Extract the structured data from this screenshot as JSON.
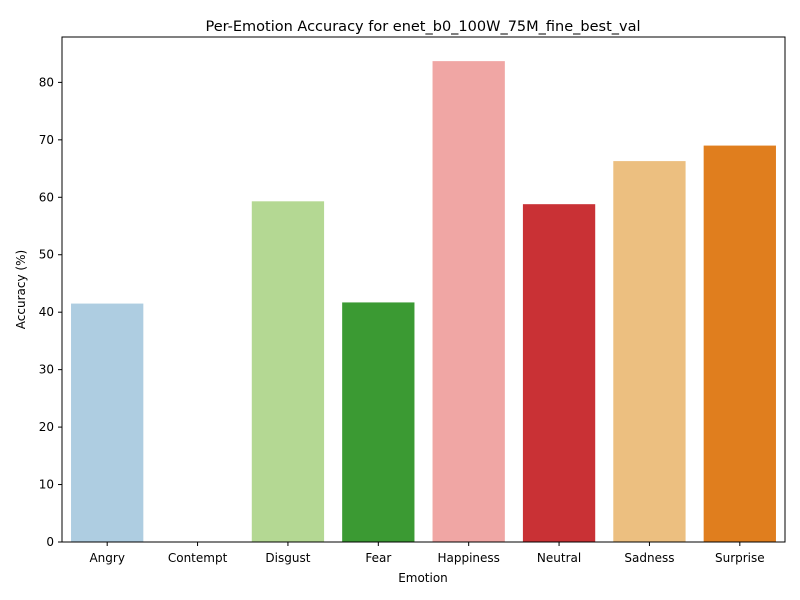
{
  "chart_data": {
    "type": "bar",
    "title": "Per-Emotion Accuracy for enet_b0_100W_75M_fine_best_val",
    "xlabel": "Emotion",
    "ylabel": "Accuracy (%)",
    "categories": [
      "Angry",
      "Contempt",
      "Disgust",
      "Fear",
      "Happiness",
      "Neutral",
      "Sadness",
      "Surprise"
    ],
    "values": [
      41.5,
      0,
      59.3,
      41.7,
      83.7,
      58.8,
      66.3,
      69.0
    ],
    "colors": [
      "#aecde1",
      "#1f78b4",
      "#b4d893",
      "#3b9a33",
      "#f0a6a4",
      "#c93135",
      "#ecbf80",
      "#e07e1e"
    ],
    "ylim": [
      0,
      87.9
    ],
    "yticks": [
      0,
      10,
      20,
      30,
      40,
      50,
      60,
      70,
      80
    ],
    "grid": false,
    "legend": "none"
  }
}
